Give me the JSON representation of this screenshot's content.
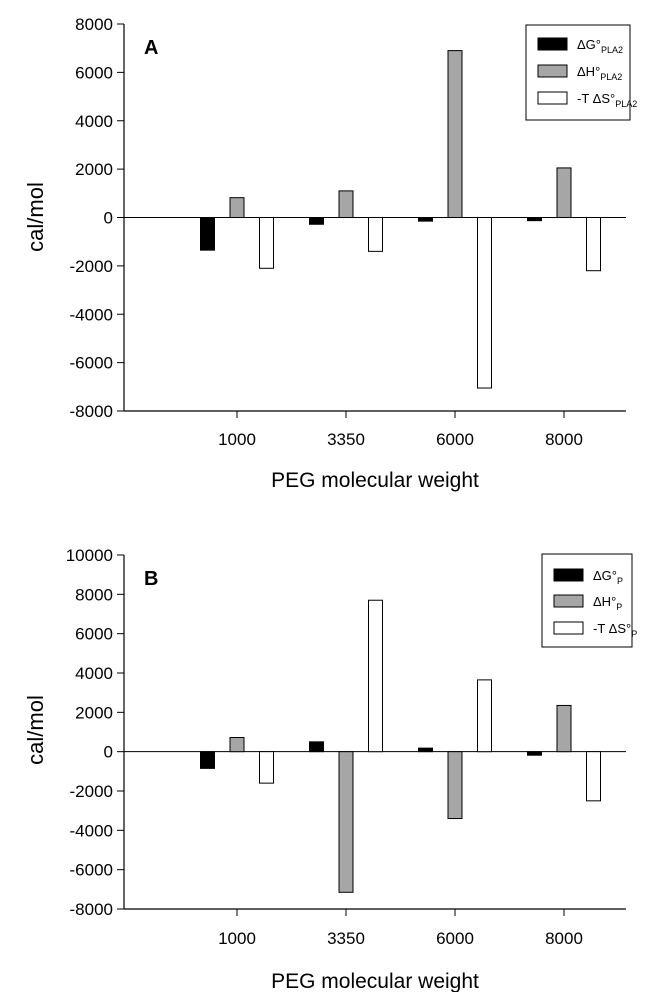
{
  "chart_data": [
    {
      "type": "bar",
      "panel_label": "A",
      "categories": [
        "1000",
        "3350",
        "6000",
        "8000"
      ],
      "xlabel": "PEG molecular weight",
      "ylabel": "cal/mol",
      "ylim": [
        -8000,
        8000
      ],
      "yticks": [
        -8000,
        -6000,
        -4000,
        -2000,
        0,
        2000,
        4000,
        6000,
        8000
      ],
      "legend": "top-right",
      "grid": false,
      "series": [
        {
          "name": "ΔG°",
          "sub": "PLA2",
          "color": "#000000",
          "values": [
            -1350,
            -280,
            -150,
            -130
          ]
        },
        {
          "name": "ΔH°",
          "sub": "PLA2",
          "color": "#a6a6a6",
          "values": [
            820,
            1100,
            6900,
            2050
          ]
        },
        {
          "name": "-T ΔS°",
          "sub": "PLA2",
          "color": "#ffffff",
          "values": [
            -2100,
            -1400,
            -7050,
            -2200
          ]
        }
      ]
    },
    {
      "type": "bar",
      "panel_label": "B",
      "categories": [
        "1000",
        "3350",
        "6000",
        "8000"
      ],
      "xlabel": "PEG molecular weight",
      "ylabel": "cal/mol",
      "ylim": [
        -8000,
        10000
      ],
      "yticks": [
        -8000,
        -6000,
        -4000,
        -2000,
        0,
        2000,
        4000,
        6000,
        8000,
        10000
      ],
      "legend": "top-right",
      "grid": false,
      "series": [
        {
          "name": "ΔG°",
          "sub": "P",
          "color": "#000000",
          "values": [
            -850,
            500,
            180,
            -180
          ]
        },
        {
          "name": "ΔH°",
          "sub": "P",
          "color": "#a6a6a6",
          "values": [
            720,
            -7150,
            -3400,
            2350
          ]
        },
        {
          "name": "-T ΔS°",
          "sub": "P",
          "color": "#ffffff",
          "values": [
            -1600,
            7700,
            3650,
            -2500
          ]
        }
      ]
    }
  ]
}
